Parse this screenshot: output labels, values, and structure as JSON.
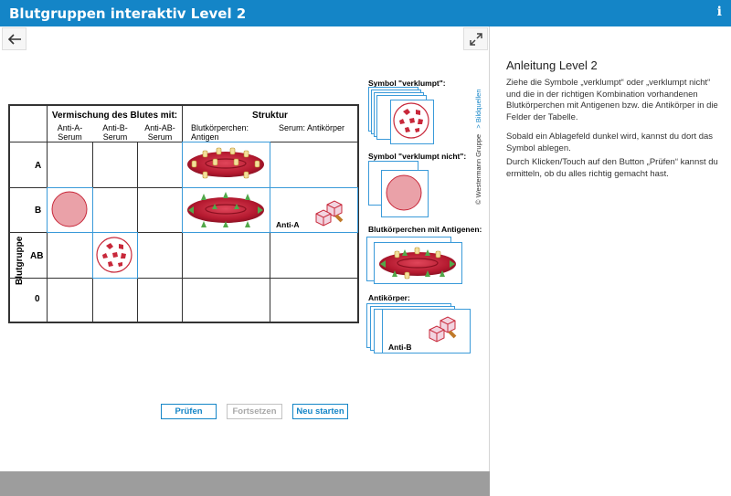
{
  "window": {
    "title": "Blutgruppen interaktiv Level 2",
    "info_icon": "info-icon",
    "info_glyph": "i"
  },
  "nav": {
    "back_icon": "arrow-left-icon",
    "back_glyph": "←",
    "fullscreen_icon": "expand-icon"
  },
  "credit": {
    "text": "© Westermann Gruppe",
    "source_link": "> Bildquellen"
  },
  "table": {
    "header_mix": "Vermischung des Blutes mit:",
    "header_structure": "Struktur",
    "col_anti_a": [
      "Anti-A-",
      "Serum"
    ],
    "col_anti_b": [
      "Anti-B-",
      "Serum"
    ],
    "col_anti_ab": [
      "Anti-AB-",
      "Serum"
    ],
    "col_cells": [
      "Blutkörperchen:",
      "Antigen"
    ],
    "col_serum": "Serum: Antikörper",
    "row_axis": "Blutgruppe",
    "rows": [
      "A",
      "B",
      "AB",
      "0"
    ],
    "placed_anti_label": "Anti-A"
  },
  "sidebar": {
    "sym_clumped": "Symbol \"verklumpt\":",
    "sym_not_clumped": "Symbol \"verklumpt nicht\":",
    "cells_with_antigens": "Blutkörperchen mit Antigenen:",
    "antibodies": "Antikörper:",
    "anti_card_label": "Anti-B"
  },
  "buttons": {
    "check": "Prüfen",
    "continue": "Fortsetzen",
    "restart": "Neu starten"
  },
  "instructions": {
    "heading": "Anleitung Level 2",
    "p1": "Ziehe die Symbole „verklumpt“ oder „verklumpt nicht“ und die in der richtigen Kombination vorhandenen Blutkörperchen mit Antigenen bzw. die Antikörper in die Felder der Tabelle.",
    "p2": "Sobald ein Ablagefeld dunkel wird, kannst du dort das Symbol ablegen.",
    "p3": "Durch Klicken/Touch auf den Button „Prüfen“ kannst du ermitteln, ob du alles richtig gemacht hast."
  },
  "colors": {
    "accent": "#1485c7",
    "cell_red": "#c8283a",
    "pink": "#eaa1a8",
    "footer": "#9d9d9d"
  }
}
